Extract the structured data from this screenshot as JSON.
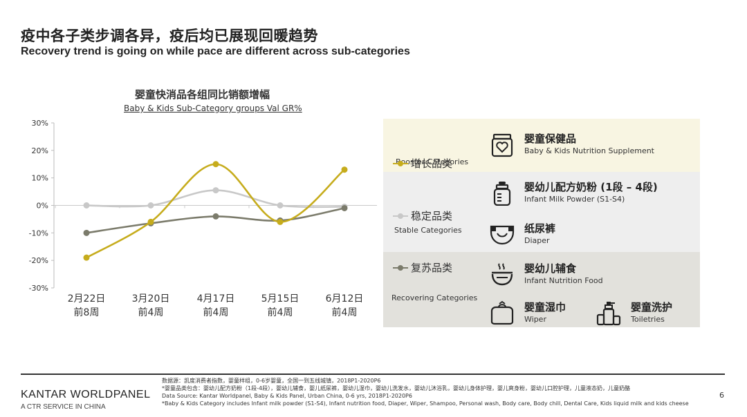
{
  "header": {
    "title_cn": "疫中各子类步调各异，疫后均已展现回暖趋势",
    "title_en": "Recovery trend is going on while pace are different across sub-categories"
  },
  "chart_data": {
    "type": "line",
    "title": "婴童快消品各组同比销额增幅",
    "subtitle": "Baby & Kids Sub-Category groups Val GR%",
    "categories": [
      "2月22日\n前8周",
      "3月20日\n前4周",
      "4月17日\n前4周",
      "5月15日\n前4周",
      "6月12日\n前4周"
    ],
    "category_lines": [
      [
        "2月22日",
        "前8周"
      ],
      [
        "3月20日",
        "前4周"
      ],
      [
        "4月17日",
        "前4周"
      ],
      [
        "5月15日",
        "前4周"
      ],
      [
        "6月12日",
        "前4周"
      ]
    ],
    "ylim": [
      -30,
      30
    ],
    "yticks": [
      30,
      20,
      10,
      0,
      -10,
      -20,
      -30
    ],
    "ytick_labels": [
      "30%",
      "20%",
      "10%",
      "0%",
      "-10%",
      "-20%",
      "-30%"
    ],
    "grid": false,
    "series": [
      {
        "name": "增长品类",
        "color": "#c6ac1c",
        "values": [
          -19,
          -6,
          15,
          -6,
          13
        ]
      },
      {
        "name": "稳定品类",
        "color": "#c8c8c8",
        "values": [
          0,
          0,
          5.5,
          0,
          -0.5
        ]
      },
      {
        "name": "复苏品类",
        "color": "#7b7b6b",
        "values": [
          -10,
          -6.5,
          -4,
          -5.5,
          -1
        ]
      }
    ]
  },
  "legend": {
    "booster": {
      "cn": "增长品类",
      "en": "Booster Categories"
    },
    "stable": {
      "cn": "稳定品类",
      "en": "Stable Categories"
    },
    "recovering": {
      "cn": "复苏品类",
      "en": "Recovering Categories"
    }
  },
  "categories_panel": {
    "nutrition": {
      "cn": "婴童保健品",
      "en": "Baby & Kids Nutrition Supplement",
      "icon": "supplement-jar-icon"
    },
    "milk": {
      "cn": "婴幼儿配方奶粉 (1段 – 4段)",
      "en": "Infant Milk Powder (S1-S4)",
      "icon": "milk-bottle-icon"
    },
    "diaper": {
      "cn": "纸尿裤",
      "en": "Diaper",
      "icon": "diaper-icon"
    },
    "food": {
      "cn": "婴幼儿辅食",
      "en": "Infant Nutrition Food",
      "icon": "food-bowl-icon"
    },
    "wiper": {
      "cn": "婴童湿巾",
      "en": "Wiper",
      "icon": "wipes-icon"
    },
    "toiletries": {
      "cn": "婴童洗护",
      "en": "Toiletries",
      "icon": "toiletries-icon"
    }
  },
  "footer": {
    "brand": "KANTAR WORLDPANEL",
    "brand_sub": "A CTR SERVICE IN CHINA",
    "note1": "数据源：凯度消费者指数，婴童样组，0-6岁婴童，全国一到五线城镇，2018P1-2020P6",
    "note2": "*婴童品类包含：婴幼儿配方奶粉（1段-4段），婴幼儿辅食，婴儿纸尿裤，婴幼儿湿巾，婴幼儿洗发水，婴幼儿沐浴乳，婴幼儿身体护理，婴儿爽身粉，婴幼儿口腔护理，儿童液态奶，儿童奶酪",
    "note3": "Data Source: Kantar Worldpanel, Baby & Kids Panel, Urban China, 0-6 yrs, 2018P1-2020P6",
    "note4": "*Baby & Kids Category includes Infant milk powder (S1-S4), Infant nutrition food, Diaper, Wiper, Shampoo, Personal wash, Body care, Body chill, Dental Care, Kids liquid milk and kids cheese",
    "page": "6"
  },
  "colors": {
    "booster": "#c6ac1c",
    "stable": "#c8c8c8",
    "recovering": "#7b7b6b",
    "panel_booster": "#f8f5e2",
    "panel_stable": "#eeeeee",
    "panel_recovering": "#e2e1dc"
  }
}
